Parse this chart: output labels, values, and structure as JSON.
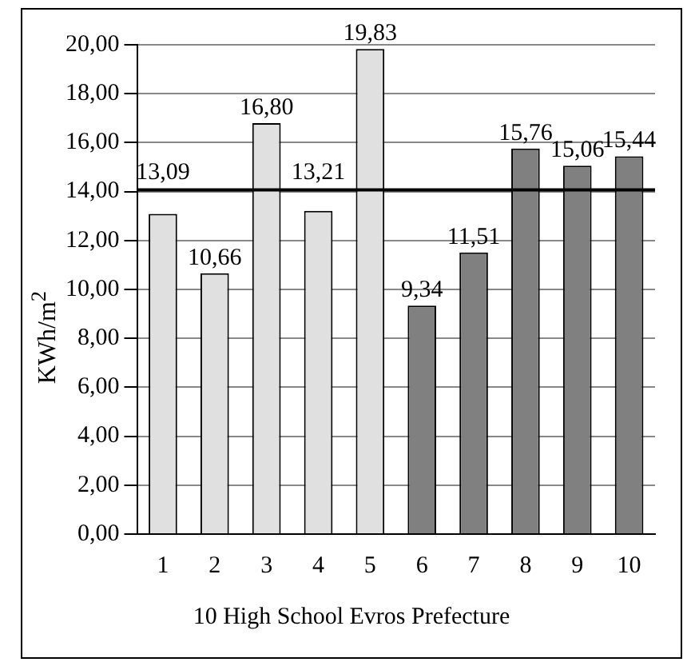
{
  "chart_data": {
    "type": "bar",
    "xlabel": "10 High School Evros Prefecture",
    "ylabel": "KWh/m$^{2}$",
    "categories": [
      "1",
      "2",
      "3",
      "4",
      "5",
      "6",
      "7",
      "8",
      "9",
      "10"
    ],
    "values": [
      13.09,
      10.66,
      16.8,
      13.21,
      19.83,
      9.34,
      11.51,
      15.76,
      15.06,
      15.44
    ],
    "value_labels": [
      "13,09",
      "10,66",
      "16,80",
      "13,21",
      "19,83",
      "9,34",
      "11,51",
      "15,76",
      "15,06",
      "15,44"
    ],
    "colors": [
      "#e0e0e0",
      "#e0e0e0",
      "#e0e0e0",
      "#e0e0e0",
      "#e0e0e0",
      "#808080",
      "#808080",
      "#808080",
      "#808080",
      "#808080"
    ],
    "ylim": [
      0,
      20
    ],
    "yticks": [
      {
        "value": 0,
        "label": "0,00"
      },
      {
        "value": 2,
        "label": "2,00"
      },
      {
        "value": 4,
        "label": "4,00"
      },
      {
        "value": 6,
        "label": "6,00"
      },
      {
        "value": 8,
        "label": "8,00"
      },
      {
        "value": 10,
        "label": "10,00"
      },
      {
        "value": 12,
        "label": "12,00"
      },
      {
        "value": 14,
        "label": "14,00"
      },
      {
        "value": 16,
        "label": "16,00"
      },
      {
        "value": 18,
        "label": "18,00"
      },
      {
        "value": 20,
        "label": "20,00"
      }
    ],
    "ref_lines": [
      {
        "axis": "y",
        "value": 14.07,
        "color": "#000000"
      }
    ],
    "grid": "y",
    "legend": false
  }
}
